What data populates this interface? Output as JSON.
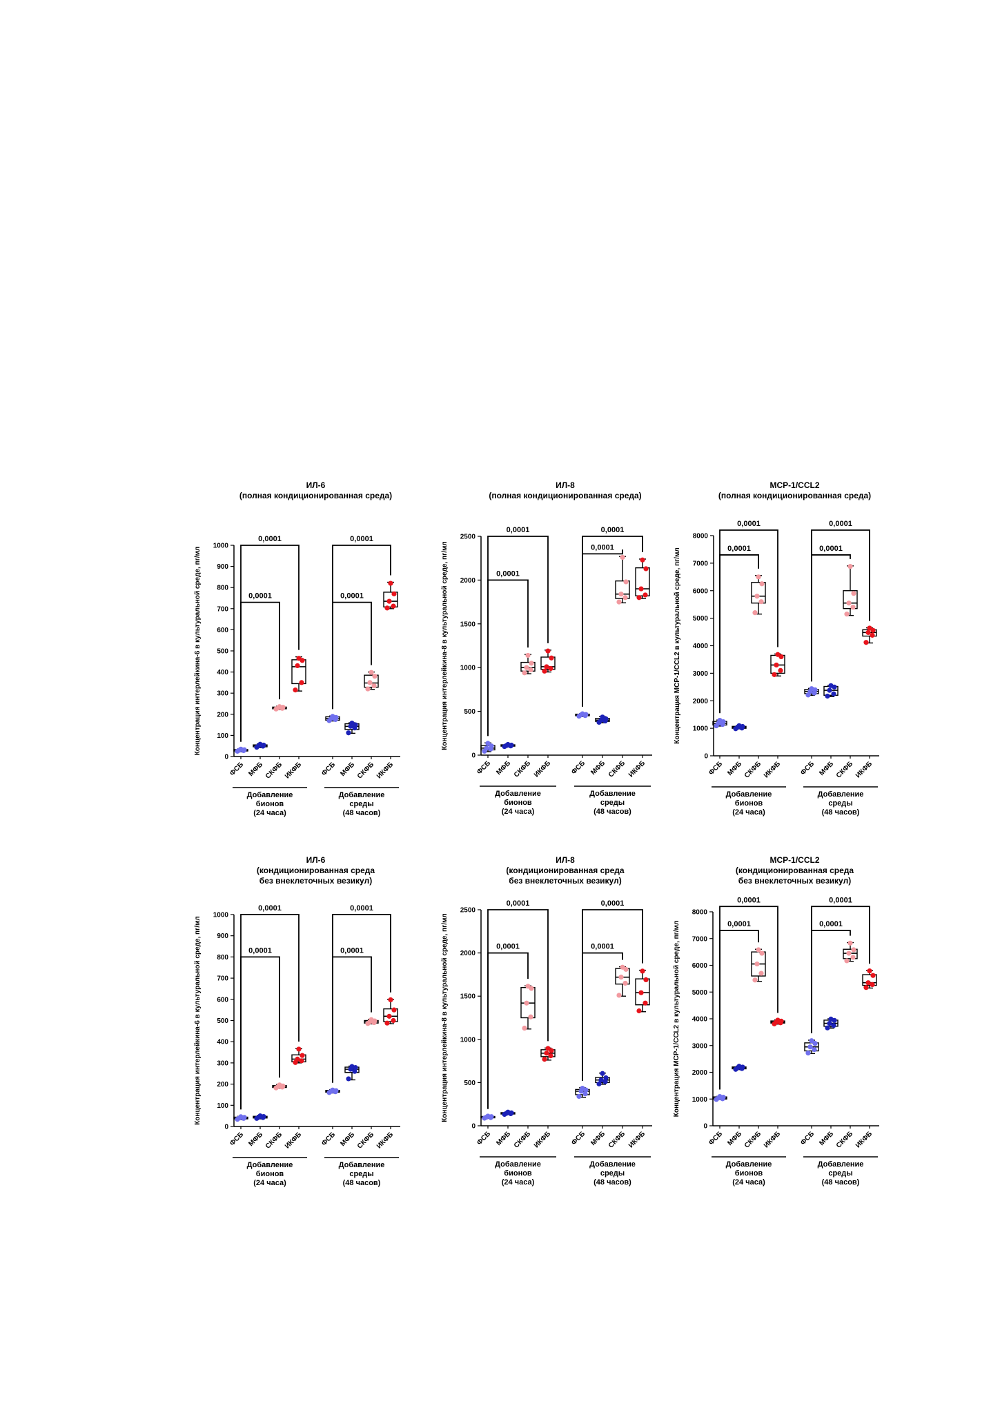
{
  "colors": {
    "fsb": "#7070ee",
    "mfb": "#1c22b8",
    "skfb": "#f29aa0",
    "ikfb": "#e8141c",
    "axis": "#000000"
  },
  "group_labels": [
    "ФСБ",
    "МФБ",
    "СКФБ",
    "ИКФБ",
    "ФСБ",
    "МФБ",
    "СКФБ",
    "ИКФБ"
  ],
  "bracket_labels": [
    [
      "Добавление",
      "бионов",
      "(24 часа)"
    ],
    [
      "Добавление",
      "среды",
      "(48 часов)"
    ]
  ],
  "chart_data": [
    {
      "type": "box",
      "title": [
        "ИЛ-6",
        "(полная кондиционированная среда)"
      ],
      "ylabel": "Концентрация интерлейкина-6 в культуральной среде, пг/мл",
      "ylim": [
        0,
        1000
      ],
      "yticks": [
        0,
        100,
        200,
        300,
        400,
        500,
        600,
        700,
        800,
        900,
        1000
      ],
      "boxes": [
        {
          "min": 22,
          "q1": 26,
          "median": 30,
          "q3": 33,
          "max": 37,
          "points": [
            25,
            28,
            30,
            32,
            35
          ]
        },
        {
          "min": 42,
          "q1": 46,
          "median": 52,
          "q3": 55,
          "max": 60,
          "points": [
            44,
            49,
            52,
            54,
            58
          ]
        },
        {
          "min": 222,
          "q1": 226,
          "median": 230,
          "q3": 234,
          "max": 238,
          "points": [
            225,
            228,
            230,
            233,
            236
          ]
        },
        {
          "min": 310,
          "q1": 345,
          "median": 425,
          "q3": 458,
          "max": 472,
          "points": [
            315,
            350,
            430,
            455,
            465
          ]
        },
        {
          "min": 168,
          "q1": 172,
          "median": 180,
          "q3": 188,
          "max": 192,
          "points": [
            170,
            175,
            180,
            185,
            190
          ]
        },
        {
          "min": 110,
          "q1": 128,
          "median": 143,
          "q3": 155,
          "max": 160,
          "points": [
            112,
            135,
            143,
            150,
            158
          ]
        },
        {
          "min": 318,
          "q1": 328,
          "median": 348,
          "q3": 385,
          "max": 400,
          "points": [
            320,
            335,
            350,
            380,
            398
          ]
        },
        {
          "min": 700,
          "q1": 708,
          "median": 735,
          "q3": 778,
          "max": 825,
          "points": [
            703,
            712,
            735,
            770,
            820
          ]
        }
      ],
      "comparisons": [
        {
          "from": 0,
          "to": 3,
          "label": "0,0001",
          "y": 1000
        },
        {
          "from": 0,
          "to": 2,
          "label": "0,0001",
          "y": 730
        },
        {
          "from": 4,
          "to": 7,
          "label": "0,0001",
          "y": 1000
        },
        {
          "from": 4,
          "to": 6,
          "label": "0,0001",
          "y": 730
        }
      ]
    },
    {
      "type": "box",
      "title": [
        "ИЛ-8",
        "(полная кондиционированная среда)"
      ],
      "ylabel": "Концентрация интерлейкина-8 в культуральной среде, пг/мл",
      "ylim": [
        0,
        2500
      ],
      "yticks": [
        0,
        500,
        1000,
        1500,
        2000,
        2500
      ],
      "boxes": [
        {
          "min": 40,
          "q1": 60,
          "median": 80,
          "q3": 110,
          "max": 140,
          "points": [
            45,
            70,
            80,
            105,
            135
          ]
        },
        {
          "min": 95,
          "q1": 102,
          "median": 110,
          "q3": 118,
          "max": 125,
          "points": [
            98,
            105,
            110,
            115,
            122
          ]
        },
        {
          "min": 930,
          "q1": 960,
          "median": 1000,
          "q3": 1060,
          "max": 1150,
          "points": [
            940,
            975,
            1000,
            1050,
            1140
          ]
        },
        {
          "min": 950,
          "q1": 980,
          "median": 1010,
          "q3": 1120,
          "max": 1200,
          "points": [
            960,
            990,
            1010,
            1110,
            1190
          ]
        },
        {
          "min": 440,
          "q1": 450,
          "median": 460,
          "q3": 468,
          "max": 475,
          "points": [
            445,
            452,
            460,
            465,
            472
          ]
        },
        {
          "min": 370,
          "q1": 385,
          "median": 400,
          "q3": 420,
          "max": 440,
          "points": [
            375,
            390,
            400,
            415,
            435
          ]
        },
        {
          "min": 1740,
          "q1": 1790,
          "median": 1840,
          "q3": 1990,
          "max": 2270,
          "points": [
            1750,
            1800,
            1840,
            1980,
            2260
          ]
        },
        {
          "min": 1790,
          "q1": 1820,
          "median": 1900,
          "q3": 2140,
          "max": 2240,
          "points": [
            1800,
            1830,
            1900,
            2130,
            2230
          ]
        }
      ],
      "comparisons": [
        {
          "from": 0,
          "to": 3,
          "label": "0,0001",
          "y": 2500
        },
        {
          "from": 0,
          "to": 2,
          "label": "0,0001",
          "y": 2000
        },
        {
          "from": 4,
          "to": 7,
          "label": "0,0001",
          "y": 2500
        },
        {
          "from": 4,
          "to": 6,
          "label": "0,0001",
          "y": 2300
        }
      ]
    },
    {
      "type": "box",
      "title": [
        "MCP-1/CCL2",
        "(полная кондиционированная среда)"
      ],
      "ylabel": "Концентрация MCP-1/CCL2 в культуральной среде, пг/мл",
      "ylim": [
        0,
        8000
      ],
      "yticks": [
        0,
        1000,
        2000,
        3000,
        4000,
        5000,
        6000,
        7000,
        8000
      ],
      "boxes": [
        {
          "min": 1080,
          "q1": 1120,
          "median": 1180,
          "q3": 1250,
          "max": 1300,
          "points": [
            1090,
            1140,
            1180,
            1240,
            1290
          ]
        },
        {
          "min": 980,
          "q1": 1000,
          "median": 1040,
          "q3": 1070,
          "max": 1100,
          "points": [
            985,
            1010,
            1040,
            1065,
            1095
          ]
        },
        {
          "min": 5150,
          "q1": 5550,
          "median": 5800,
          "q3": 6300,
          "max": 6550,
          "points": [
            5200,
            5600,
            5800,
            6250,
            6500
          ]
        },
        {
          "min": 2900,
          "q1": 3000,
          "median": 3300,
          "q3": 3650,
          "max": 3700,
          "points": [
            2950,
            3100,
            3300,
            3600,
            3680
          ]
        },
        {
          "min": 2200,
          "q1": 2260,
          "median": 2340,
          "q3": 2410,
          "max": 2450,
          "points": [
            2210,
            2280,
            2340,
            2400,
            2440
          ]
        },
        {
          "min": 2150,
          "q1": 2200,
          "median": 2380,
          "q3": 2520,
          "max": 2560,
          "points": [
            2170,
            2250,
            2380,
            2500,
            2550
          ]
        },
        {
          "min": 5100,
          "q1": 5350,
          "median": 5550,
          "q3": 6000,
          "max": 6900,
          "points": [
            5150,
            5400,
            5550,
            5900,
            6880
          ]
        },
        {
          "min": 4100,
          "q1": 4350,
          "median": 4480,
          "q3": 4580,
          "max": 4650,
          "points": [
            4120,
            4380,
            4480,
            4560,
            4640
          ]
        }
      ],
      "comparisons": [
        {
          "from": 0,
          "to": 3,
          "label": "0,0001",
          "y": 8200
        },
        {
          "from": 0,
          "to": 2,
          "label": "0,0001",
          "y": 7300
        },
        {
          "from": 4,
          "to": 7,
          "label": "0,0001",
          "y": 8200
        },
        {
          "from": 4,
          "to": 6,
          "label": "0,0001",
          "y": 7300
        }
      ]
    },
    {
      "type": "box",
      "title": [
        "ИЛ-6",
        "(кондиционированная среда",
        "без внеклеточных везикул)"
      ],
      "ylabel": "Концентрация интерлейкина-6 в культуральной среде, пг/мл",
      "ylim": [
        0,
        1000
      ],
      "yticks": [
        0,
        100,
        200,
        300,
        400,
        500,
        600,
        700,
        800,
        900,
        1000
      ],
      "boxes": [
        {
          "min": 32,
          "q1": 36,
          "median": 40,
          "q3": 44,
          "max": 48,
          "points": [
            34,
            38,
            40,
            43,
            46
          ]
        },
        {
          "min": 36,
          "q1": 40,
          "median": 44,
          "q3": 48,
          "max": 52,
          "points": [
            38,
            42,
            44,
            47,
            50
          ]
        },
        {
          "min": 180,
          "q1": 184,
          "median": 188,
          "q3": 193,
          "max": 198,
          "points": [
            182,
            186,
            188,
            191,
            196
          ]
        },
        {
          "min": 300,
          "q1": 305,
          "median": 318,
          "q3": 338,
          "max": 368,
          "points": [
            302,
            310,
            318,
            335,
            365
          ]
        },
        {
          "min": 158,
          "q1": 162,
          "median": 166,
          "q3": 170,
          "max": 174,
          "points": [
            160,
            164,
            166,
            169,
            172
          ]
        },
        {
          "min": 220,
          "q1": 255,
          "median": 270,
          "q3": 280,
          "max": 285,
          "points": [
            225,
            260,
            270,
            278,
            283
          ]
        },
        {
          "min": 484,
          "q1": 488,
          "median": 494,
          "q3": 500,
          "max": 506,
          "points": [
            486,
            490,
            494,
            498,
            504
          ]
        },
        {
          "min": 485,
          "q1": 495,
          "median": 520,
          "q3": 555,
          "max": 600,
          "points": [
            488,
            500,
            520,
            550,
            598
          ]
        }
      ],
      "comparisons": [
        {
          "from": 0,
          "to": 3,
          "label": "0,0001",
          "y": 1000
        },
        {
          "from": 0,
          "to": 2,
          "label": "0,0001",
          "y": 800
        },
        {
          "from": 4,
          "to": 7,
          "label": "0,0001",
          "y": 1000
        },
        {
          "from": 4,
          "to": 6,
          "label": "0,0001",
          "y": 800
        }
      ]
    },
    {
      "type": "box",
      "title": [
        "ИЛ-8",
        "(кондиционированная среда",
        "без внеклеточных везикул)"
      ],
      "ylabel": "Концентрация интерлейкина-8 в культуральной среде, пг/мл",
      "ylim": [
        0,
        2500
      ],
      "yticks": [
        0,
        500,
        1000,
        1500,
        2000,
        2500
      ],
      "boxes": [
        {
          "min": 85,
          "q1": 92,
          "median": 100,
          "q3": 108,
          "max": 115,
          "points": [
            88,
            95,
            100,
            106,
            112
          ]
        },
        {
          "min": 130,
          "q1": 138,
          "median": 145,
          "q3": 152,
          "max": 160,
          "points": [
            132,
            140,
            145,
            150,
            158
          ]
        },
        {
          "min": 1120,
          "q1": 1250,
          "median": 1420,
          "q3": 1600,
          "max": 1620,
          "points": [
            1130,
            1260,
            1420,
            1590,
            1615
          ]
        },
        {
          "min": 760,
          "q1": 800,
          "median": 840,
          "q3": 880,
          "max": 900,
          "points": [
            770,
            810,
            840,
            870,
            895
          ]
        },
        {
          "min": 330,
          "q1": 360,
          "median": 400,
          "q3": 420,
          "max": 440,
          "points": [
            340,
            370,
            400,
            415,
            435
          ]
        },
        {
          "min": 480,
          "q1": 500,
          "median": 530,
          "q3": 560,
          "max": 610,
          "points": [
            485,
            510,
            530,
            555,
            605
          ]
        },
        {
          "min": 1500,
          "q1": 1640,
          "median": 1720,
          "q3": 1820,
          "max": 1840,
          "points": [
            1510,
            1650,
            1720,
            1810,
            1835
          ]
        },
        {
          "min": 1320,
          "q1": 1400,
          "median": 1540,
          "q3": 1700,
          "max": 1800,
          "points": [
            1330,
            1420,
            1540,
            1690,
            1790
          ]
        }
      ],
      "comparisons": [
        {
          "from": 0,
          "to": 3,
          "label": "0,0001",
          "y": 2500
        },
        {
          "from": 0,
          "to": 2,
          "label": "0,0001",
          "y": 2000
        },
        {
          "from": 4,
          "to": 7,
          "label": "0,0001",
          "y": 2500
        },
        {
          "from": 4,
          "to": 6,
          "label": "0,0001",
          "y": 2000
        }
      ]
    },
    {
      "type": "box",
      "title": [
        "MCP-1/CCL2",
        "(кондиционированная среда",
        "без внеклеточных везикул)"
      ],
      "ylabel": "Концентрация MCP-1/CCL2 в культуральной среде, пг/мл",
      "ylim": [
        0,
        8000
      ],
      "yticks": [
        0,
        1000,
        2000,
        3000,
        4000,
        5000,
        6000,
        7000,
        8000
      ],
      "boxes": [
        {
          "min": 980,
          "q1": 1000,
          "median": 1040,
          "q3": 1080,
          "max": 1100,
          "points": [
            985,
            1010,
            1040,
            1070,
            1095
          ]
        },
        {
          "min": 2100,
          "q1": 2130,
          "median": 2170,
          "q3": 2200,
          "max": 2230,
          "points": [
            2110,
            2140,
            2170,
            2195,
            2225
          ]
        },
        {
          "min": 5400,
          "q1": 5600,
          "median": 6050,
          "q3": 6500,
          "max": 6600,
          "points": [
            5450,
            5700,
            6050,
            6450,
            6580
          ]
        },
        {
          "min": 3800,
          "q1": 3840,
          "median": 3880,
          "q3": 3920,
          "max": 3960,
          "points": [
            3810,
            3850,
            3880,
            3915,
            3950
          ]
        },
        {
          "min": 2700,
          "q1": 2800,
          "median": 2950,
          "q3": 3100,
          "max": 3200,
          "points": [
            2720,
            2850,
            2950,
            3080,
            3180
          ]
        },
        {
          "min": 3650,
          "q1": 3720,
          "median": 3830,
          "q3": 3950,
          "max": 4000,
          "points": [
            3660,
            3750,
            3830,
            3940,
            3990
          ]
        },
        {
          "min": 6150,
          "q1": 6250,
          "median": 6450,
          "q3": 6600,
          "max": 6850,
          "points": [
            6170,
            6300,
            6450,
            6580,
            6830
          ]
        },
        {
          "min": 5150,
          "q1": 5250,
          "median": 5350,
          "q3": 5650,
          "max": 5800,
          "points": [
            5170,
            5280,
            5350,
            5620,
            5790
          ]
        }
      ],
      "comparisons": [
        {
          "from": 0,
          "to": 3,
          "label": "0,0001",
          "y": 8200
        },
        {
          "from": 0,
          "to": 2,
          "label": "0,0001",
          "y": 7300
        },
        {
          "from": 4,
          "to": 7,
          "label": "0,0001",
          "y": 8200
        },
        {
          "from": 4,
          "to": 6,
          "label": "0,0001",
          "y": 7300
        }
      ]
    }
  ]
}
